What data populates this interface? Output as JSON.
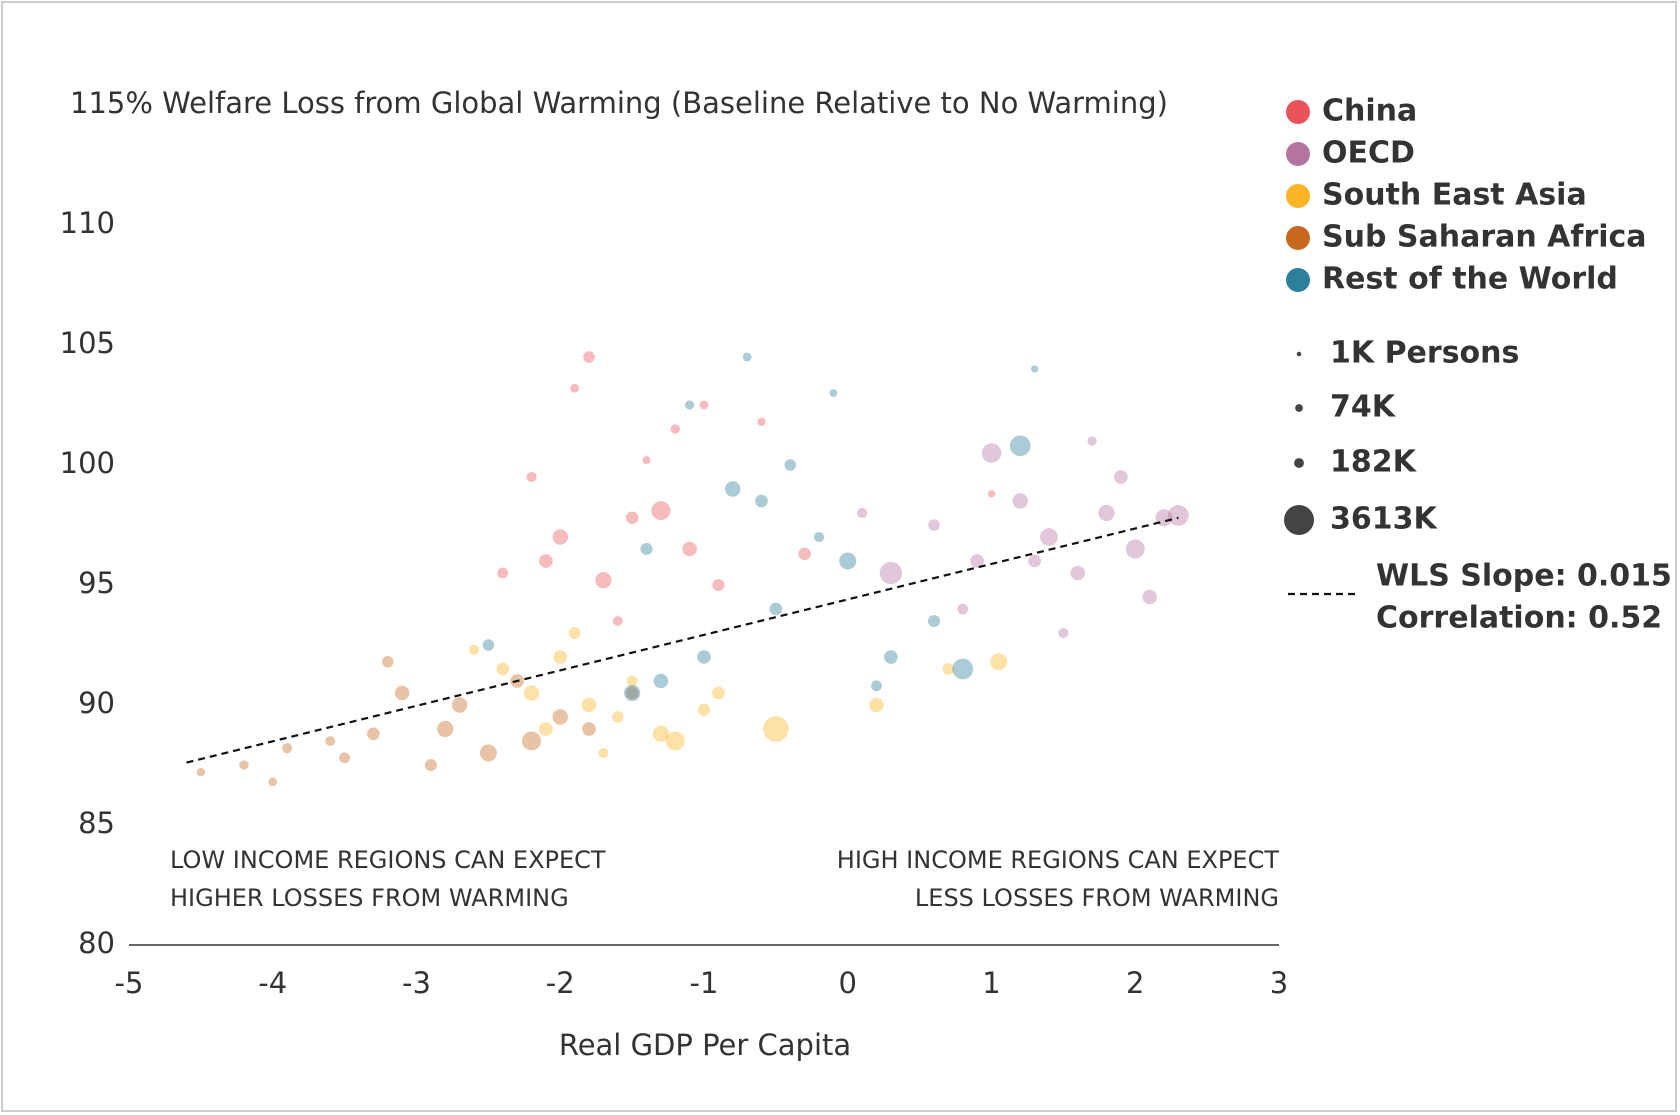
{
  "chart_data": {
    "type": "bubble",
    "title": "115% Welfare Loss from Global Warming (Baseline Relative to No Warming)",
    "x_label": "Real GDP Per Capita",
    "xlim": [
      -5,
      3
    ],
    "xticks": [
      -5,
      -4,
      -3,
      -2,
      -1,
      0,
      1,
      2,
      3
    ],
    "ylim": [
      80,
      112
    ],
    "yticks": [
      80,
      85,
      90,
      95,
      100,
      105,
      110
    ],
    "series": [
      {
        "name": "China",
        "color": "#e8545a",
        "x": [
          -1.8,
          -1.9,
          -2.1,
          -1.7,
          -1.5,
          -1.3,
          -1.1,
          -1.2,
          -2.2,
          -2.4,
          -1.6,
          -0.9,
          -0.6,
          -1.4,
          -2.0,
          -1.0,
          -0.3,
          1.0
        ],
        "y": [
          104.5,
          103.2,
          96.0,
          95.2,
          97.8,
          98.1,
          96.5,
          101.5,
          99.5,
          95.5,
          93.5,
          95.0,
          101.8,
          100.2,
          97.0,
          102.5,
          96.3,
          98.8
        ],
        "sizes": [
          300,
          120,
          500,
          800,
          400,
          1200,
          600,
          150,
          200,
          250,
          180,
          350,
          100,
          90,
          700,
          130,
          400,
          60
        ]
      },
      {
        "name": "OECD",
        "color": "#b574a0",
        "x": [
          0.6,
          0.9,
          1.2,
          1.4,
          1.6,
          1.8,
          2.0,
          2.2,
          2.3,
          1.0,
          0.3,
          1.5,
          1.9,
          0.8,
          1.3,
          2.1,
          1.7,
          0.1
        ],
        "y": [
          97.5,
          96.0,
          98.5,
          97.0,
          95.5,
          98.0,
          96.5,
          97.8,
          97.9,
          100.5,
          95.5,
          93.0,
          99.5,
          94.0,
          96.0,
          94.5,
          101.0,
          98.0
        ],
        "sizes": [
          300,
          500,
          700,
          1000,
          600,
          800,
          1200,
          900,
          1500,
          1300,
          1800,
          200,
          500,
          250,
          400,
          600,
          150,
          200
        ]
      },
      {
        "name": "South East Asia",
        "color": "#fbb424",
        "x": [
          -2.4,
          -2.2,
          -2.0,
          -1.8,
          -1.6,
          -1.3,
          -1.2,
          -0.5,
          -0.9,
          -2.6,
          -1.9,
          -1.5,
          0.2,
          1.05,
          0.7,
          -2.1,
          -1.0,
          -1.7
        ],
        "y": [
          91.5,
          90.5,
          92.0,
          90.0,
          89.5,
          88.8,
          88.5,
          89.0,
          90.5,
          92.3,
          93.0,
          91.0,
          90.0,
          91.8,
          91.5,
          89.0,
          89.8,
          88.0
        ],
        "sizes": [
          400,
          700,
          500,
          600,
          300,
          800,
          1200,
          2500,
          400,
          200,
          350,
          250,
          600,
          900,
          300,
          500,
          350,
          200
        ]
      },
      {
        "name": "Sub Saharan Africa",
        "color": "#c8681f",
        "x": [
          -4.5,
          -4.2,
          -3.9,
          -3.6,
          -3.3,
          -3.1,
          -2.8,
          -2.5,
          -2.2,
          -2.0,
          -1.8,
          -3.2,
          -2.7,
          -4.0,
          -3.5,
          -2.3,
          -1.5,
          -2.9
        ],
        "y": [
          87.2,
          87.5,
          88.2,
          88.5,
          88.8,
          90.5,
          89.0,
          88.0,
          88.5,
          89.5,
          89.0,
          91.8,
          90.0,
          86.8,
          87.8,
          91.0,
          90.5,
          87.5
        ],
        "sizes": [
          100,
          150,
          200,
          180,
          400,
          600,
          800,
          900,
          1200,
          700,
          500,
          300,
          700,
          120,
          250,
          500,
          400,
          350
        ]
      },
      {
        "name": "Rest of the World",
        "color": "#2e7f9b",
        "x": [
          -1.5,
          -1.3,
          -1.0,
          -0.8,
          -0.6,
          -0.4,
          -0.2,
          0.0,
          0.3,
          0.6,
          0.8,
          -1.1,
          -0.7,
          1.2,
          -2.5,
          -0.5,
          0.2,
          -1.4,
          -0.1,
          1.3
        ],
        "y": [
          90.5,
          91.0,
          92.0,
          99.0,
          98.5,
          100.0,
          97.0,
          96.0,
          92.0,
          93.5,
          91.5,
          102.5,
          104.5,
          100.8,
          92.5,
          94.0,
          90.8,
          96.5,
          103.0,
          104.0
        ],
        "sizes": [
          800,
          600,
          500,
          700,
          400,
          300,
          200,
          900,
          500,
          350,
          1500,
          150,
          120,
          1500,
          300,
          400,
          250,
          350,
          80,
          60
        ]
      }
    ],
    "size_legend": [
      {
        "value": 1,
        "label": "1K Persons"
      },
      {
        "value": 74,
        "label": "74K"
      },
      {
        "value": 182,
        "label": "182K"
      },
      {
        "value": 3613,
        "label": "3613K"
      }
    ],
    "trendline": {
      "x": [
        -4.6,
        2.3
      ],
      "y": [
        87.6,
        97.8
      ]
    },
    "fit_labels": [
      "WLS Slope: 0.015",
      "Correlation: 0.52"
    ],
    "annotations": {
      "left": [
        "LOW INCOME REGIONS CAN EXPECT",
        "HIGHER LOSSES FROM WARMING"
      ],
      "right": [
        "HIGH INCOME REGIONS CAN EXPECT",
        "LESS LOSSES FROM WARMING"
      ]
    }
  }
}
